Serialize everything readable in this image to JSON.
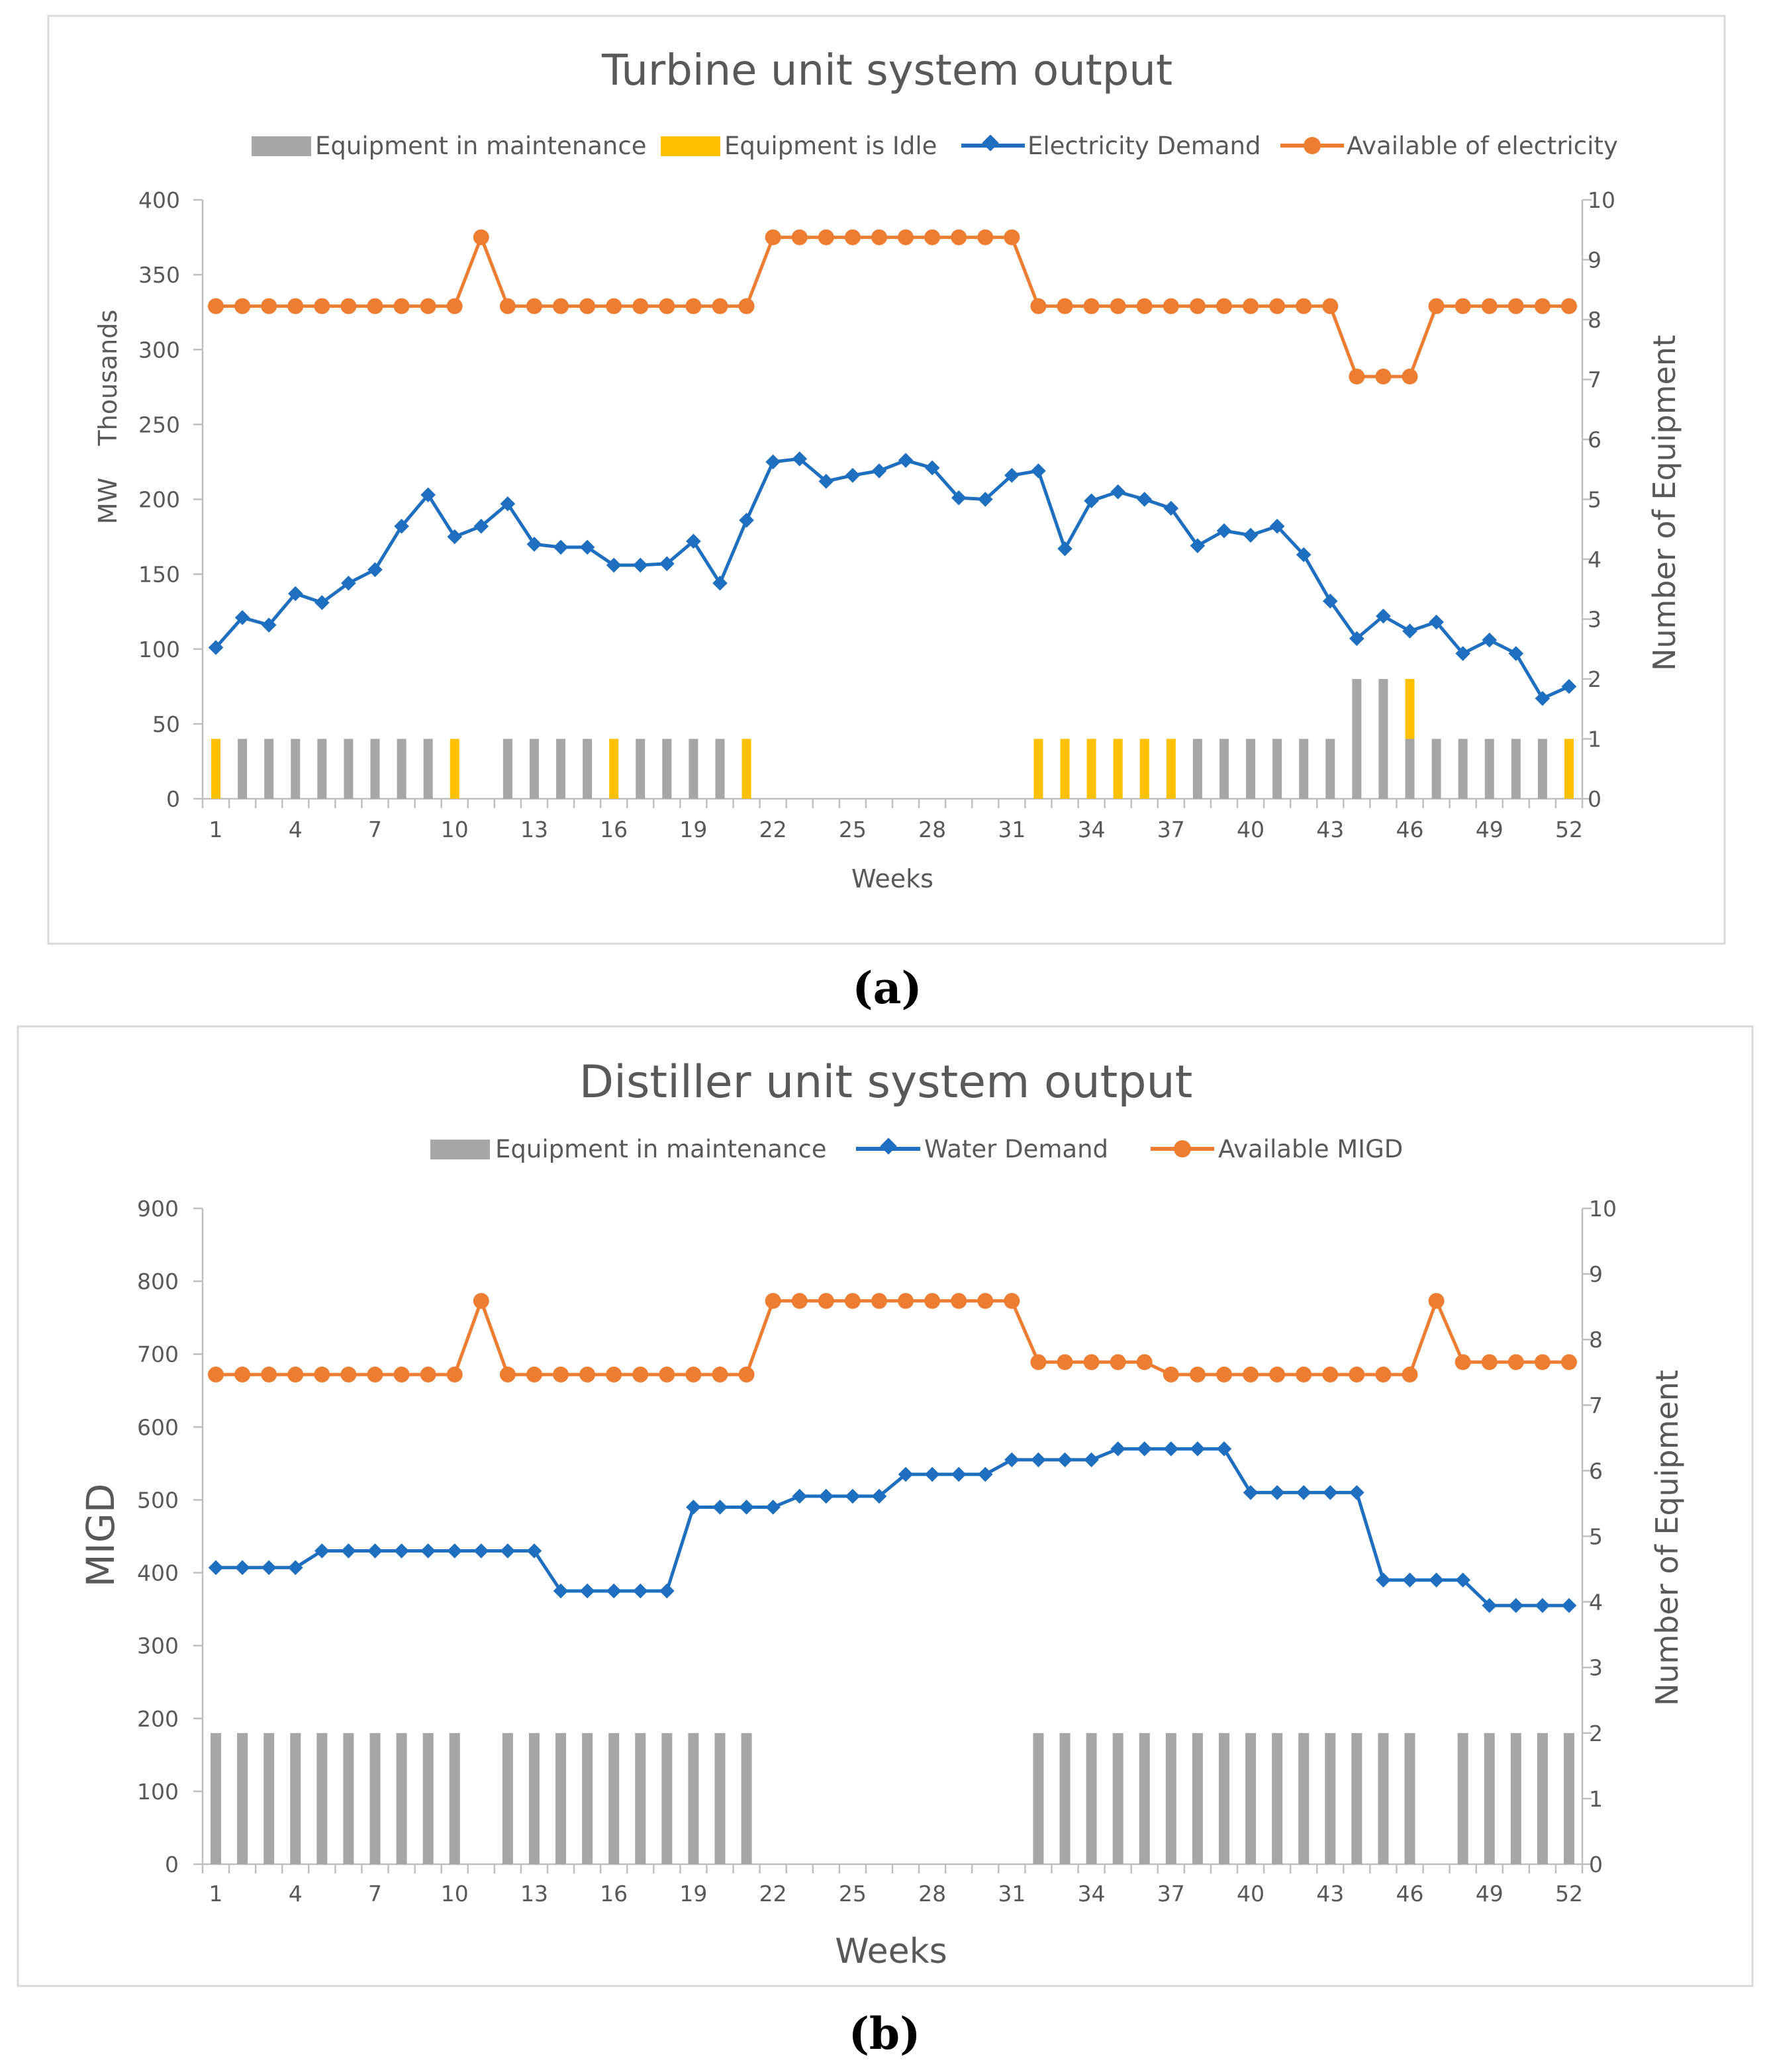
{
  "colors": {
    "maintenance": "#a6a6a6",
    "idle": "#ffc000",
    "demand": "#1f6fc0",
    "available": "#ed7d31",
    "axis": "#bfbfbf",
    "text": "#595959"
  },
  "chart_data": [
    {
      "type": "bar+line",
      "id": "a",
      "title": "Turbine unit system output",
      "caption": "(a)",
      "xlabel": "Weeks",
      "ylabel_left": "MW    Thousands",
      "ylabel_right": "Number of Equipment",
      "ylim_left": [
        0,
        400
      ],
      "ylim_right": [
        0,
        10
      ],
      "yticks_left": [
        "0",
        "50",
        "100",
        "150",
        "200",
        "250",
        "300",
        "350",
        "400"
      ],
      "yticks_right": [
        "0",
        "1",
        "2",
        "3",
        "4",
        "5",
        "6",
        "7",
        "8",
        "9",
        "10"
      ],
      "xticks": [
        "1",
        "4",
        "7",
        "10",
        "13",
        "16",
        "19",
        "22",
        "25",
        "28",
        "31",
        "34",
        "37",
        "40",
        "43",
        "46",
        "49",
        "52"
      ],
      "weeks": 52,
      "legend": {
        "maintenance": "Equipment in maintenance",
        "idle": "Equipment is Idle",
        "demand": "Electricity Demand",
        "available": "Available of electricity"
      },
      "series": [
        {
          "name": "Equipment in maintenance",
          "axis": "right",
          "kind": "bar",
          "values": [
            0,
            1,
            1,
            1,
            1,
            1,
            1,
            1,
            1,
            0,
            0,
            1,
            1,
            1,
            1,
            0,
            1,
            1,
            1,
            1,
            0,
            0,
            0,
            0,
            0,
            0,
            0,
            0,
            0,
            0,
            0,
            0,
            0,
            0,
            0,
            0,
            0,
            1,
            1,
            1,
            1,
            1,
            1,
            2,
            2,
            1,
            1,
            1,
            1,
            1,
            1,
            0
          ]
        },
        {
          "name": "Equipment is Idle",
          "axis": "right",
          "kind": "bar",
          "values": [
            1,
            0,
            0,
            0,
            0,
            0,
            0,
            0,
            0,
            1,
            0,
            0,
            0,
            0,
            0,
            1,
            0,
            0,
            0,
            0,
            1,
            0,
            0,
            0,
            0,
            0,
            0,
            0,
            0,
            0,
            0,
            1,
            1,
            1,
            1,
            1,
            1,
            0,
            0,
            0,
            0,
            0,
            0,
            0,
            0,
            1,
            0,
            0,
            0,
            0,
            0,
            1
          ]
        },
        {
          "name": "Electricity Demand",
          "axis": "left",
          "kind": "line",
          "values": [
            101,
            121,
            116,
            137,
            131,
            144,
            153,
            182,
            203,
            175,
            182,
            197,
            170,
            168,
            168,
            156,
            156,
            157,
            172,
            144,
            186,
            225,
            227,
            212,
            216,
            219,
            226,
            221,
            201,
            200,
            216,
            219,
            167,
            199,
            205,
            200,
            194,
            169,
            179,
            176,
            182,
            163,
            132,
            107,
            122,
            112,
            118,
            97,
            106,
            97,
            67,
            75
          ]
        },
        {
          "name": "Available of electricity",
          "axis": "left",
          "kind": "line",
          "values": [
            329,
            329,
            329,
            329,
            329,
            329,
            329,
            329,
            329,
            329,
            375,
            329,
            329,
            329,
            329,
            329,
            329,
            329,
            329,
            329,
            329,
            375,
            375,
            375,
            375,
            375,
            375,
            375,
            375,
            375,
            375,
            329,
            329,
            329,
            329,
            329,
            329,
            329,
            329,
            329,
            329,
            329,
            329,
            282,
            282,
            282,
            329,
            329,
            329,
            329,
            329,
            329
          ]
        }
      ]
    },
    {
      "type": "bar+line",
      "id": "b",
      "title": "Distiller unit system output",
      "caption": "(b)",
      "xlabel": "Weeks",
      "ylabel_left": "MIGD",
      "ylabel_right": "Number of Equipment",
      "ylim_left": [
        0,
        900
      ],
      "ylim_right": [
        0,
        10
      ],
      "yticks_left": [
        "0",
        "100",
        "200",
        "300",
        "400",
        "500",
        "600",
        "700",
        "800",
        "900"
      ],
      "yticks_right": [
        "0",
        "1",
        "2",
        "3",
        "4",
        "5",
        "6",
        "7",
        "8",
        "9",
        "10"
      ],
      "xticks": [
        "1",
        "4",
        "7",
        "10",
        "13",
        "16",
        "19",
        "22",
        "25",
        "28",
        "31",
        "34",
        "37",
        "40",
        "43",
        "46",
        "49",
        "52"
      ],
      "weeks": 52,
      "legend": {
        "maintenance": "Equipment in maintenance",
        "demand": "Water Demand",
        "available": "Available MIGD"
      },
      "series": [
        {
          "name": "Equipment in maintenance",
          "axis": "right",
          "kind": "bar",
          "values": [
            2,
            2,
            2,
            2,
            2,
            2,
            2,
            2,
            2,
            2,
            0,
            2,
            2,
            2,
            2,
            2,
            2,
            2,
            2,
            2,
            2,
            0,
            0,
            0,
            0,
            0,
            0,
            0,
            0,
            0,
            0,
            2,
            2,
            2,
            2,
            2,
            2,
            2,
            2,
            2,
            2,
            2,
            2,
            2,
            2,
            2,
            0,
            2,
            2,
            2,
            2,
            2
          ]
        },
        {
          "name": "Water Demand",
          "axis": "left",
          "kind": "line",
          "values": [
            407,
            407,
            407,
            407,
            430,
            430,
            430,
            430,
            430,
            430,
            430,
            430,
            430,
            375,
            375,
            375,
            375,
            375,
            490,
            490,
            490,
            490,
            505,
            505,
            505,
            505,
            535,
            535,
            535,
            535,
            555,
            555,
            555,
            555,
            570,
            570,
            570,
            570,
            570,
            510,
            510,
            510,
            510,
            510,
            390,
            390,
            390,
            390,
            355,
            355,
            355,
            355
          ]
        },
        {
          "name": "Available MIGD",
          "axis": "left",
          "kind": "line",
          "values": [
            672,
            672,
            672,
            672,
            672,
            672,
            672,
            672,
            672,
            672,
            773,
            672,
            672,
            672,
            672,
            672,
            672,
            672,
            672,
            672,
            672,
            773,
            773,
            773,
            773,
            773,
            773,
            773,
            773,
            773,
            773,
            689,
            689,
            689,
            689,
            689,
            672,
            672,
            672,
            672,
            672,
            672,
            672,
            672,
            672,
            672,
            773,
            689,
            689,
            689,
            689,
            689
          ]
        }
      ]
    }
  ]
}
